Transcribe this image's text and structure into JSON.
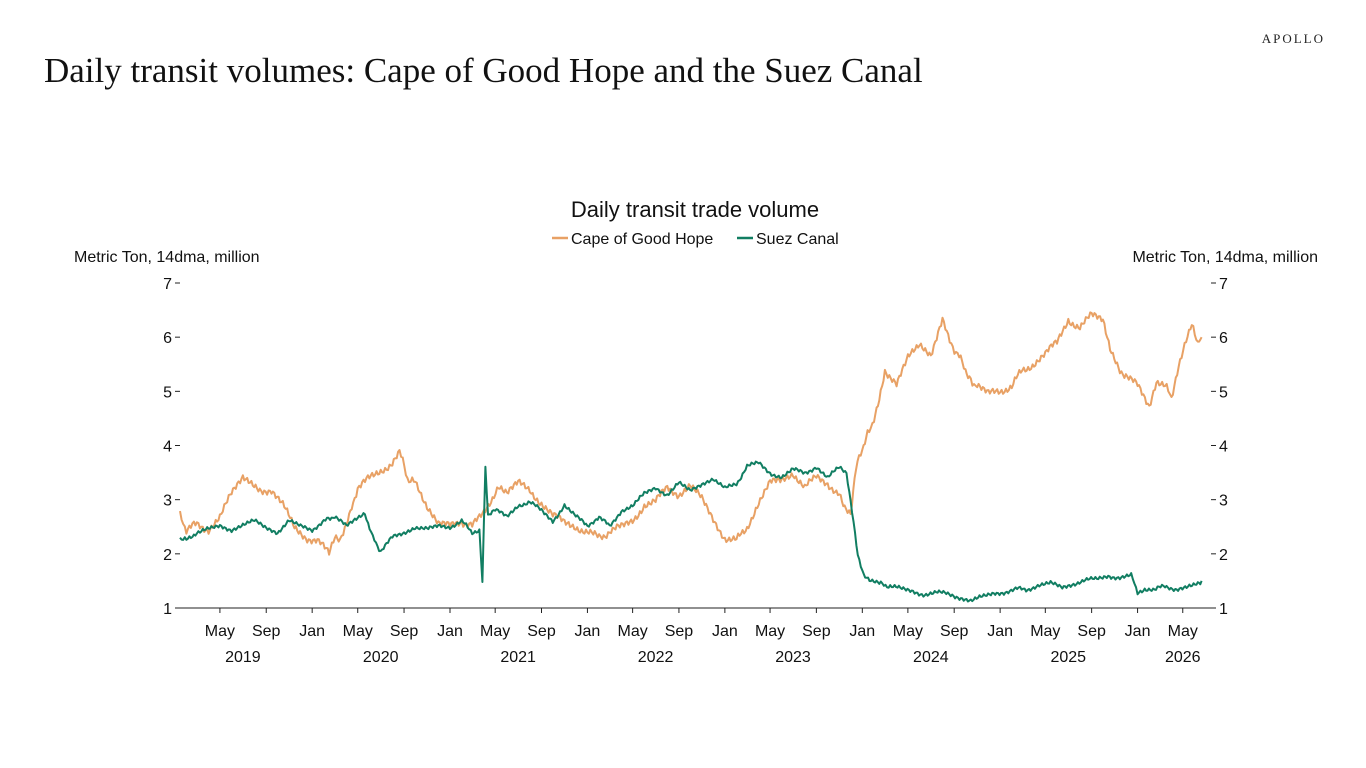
{
  "brand": "APOLLO",
  "page_title": "Daily transit volumes: Cape of Good Hope and the Suez Canal",
  "chart_data": {
    "type": "line",
    "title": "Daily transit trade volume",
    "ylabel_left": "Metric Ton, 14dma, million",
    "ylabel_right": "Metric Ton, 14dma, million",
    "ylim": [
      1,
      7
    ],
    "yticks": [
      1,
      2,
      3,
      4,
      5,
      6,
      7
    ],
    "xlim": [
      "2019-01-15",
      "2026-07-15"
    ],
    "x_tick_labels": [
      {
        "date": "2019-05-01",
        "label": "May"
      },
      {
        "date": "2019-09-01",
        "label": "Sep"
      },
      {
        "date": "2020-01-01",
        "label": "Jan"
      },
      {
        "date": "2020-05-01",
        "label": "May"
      },
      {
        "date": "2020-09-01",
        "label": "Sep"
      },
      {
        "date": "2021-01-01",
        "label": "Jan"
      },
      {
        "date": "2021-05-01",
        "label": "May"
      },
      {
        "date": "2021-09-01",
        "label": "Sep"
      },
      {
        "date": "2022-01-01",
        "label": "Jan"
      },
      {
        "date": "2022-05-01",
        "label": "May"
      },
      {
        "date": "2022-09-01",
        "label": "Sep"
      },
      {
        "date": "2023-01-01",
        "label": "Jan"
      },
      {
        "date": "2023-05-01",
        "label": "May"
      },
      {
        "date": "2023-09-01",
        "label": "Sep"
      },
      {
        "date": "2024-01-01",
        "label": "Jan"
      },
      {
        "date": "2024-05-01",
        "label": "May"
      },
      {
        "date": "2024-09-01",
        "label": "Sep"
      },
      {
        "date": "2025-01-01",
        "label": "Jan"
      },
      {
        "date": "2025-05-01",
        "label": "May"
      },
      {
        "date": "2025-09-01",
        "label": "Sep"
      },
      {
        "date": "2026-01-01",
        "label": "Jan"
      },
      {
        "date": "2026-05-01",
        "label": "May"
      }
    ],
    "year_labels": [
      {
        "date": "2019-07-01",
        "label": "2019"
      },
      {
        "date": "2020-07-01",
        "label": "2020"
      },
      {
        "date": "2021-07-01",
        "label": "2021"
      },
      {
        "date": "2022-07-01",
        "label": "2022"
      },
      {
        "date": "2023-07-01",
        "label": "2023"
      },
      {
        "date": "2024-07-01",
        "label": "2024"
      },
      {
        "date": "2025-07-01",
        "label": "2025"
      },
      {
        "date": "2026-05-01",
        "label": "2026"
      }
    ],
    "legend_position": "top-center",
    "grid": false,
    "series": [
      {
        "name": "Cape of Good Hope",
        "color": "#E8A165",
        "x": [
          "2019-01-15",
          "2019-02-01",
          "2019-03-01",
          "2019-04-01",
          "2019-05-01",
          "2019-06-01",
          "2019-07-01",
          "2019-07-20",
          "2019-08-15",
          "2019-09-15",
          "2019-10-15",
          "2019-11-15",
          "2019-12-15",
          "2020-01-15",
          "2020-02-15",
          "2020-03-01",
          "2020-03-15",
          "2020-04-01",
          "2020-04-15",
          "2020-05-01",
          "2020-06-01",
          "2020-07-01",
          "2020-08-01",
          "2020-08-20",
          "2020-09-10",
          "2020-10-01",
          "2020-11-01",
          "2020-12-01",
          "2021-01-01",
          "2021-02-01",
          "2021-03-01",
          "2021-04-01",
          "2021-04-20",
          "2021-05-10",
          "2021-06-01",
          "2021-07-01",
          "2021-08-01",
          "2021-09-01",
          "2021-10-01",
          "2021-11-01",
          "2021-12-01",
          "2022-01-01",
          "2022-02-01",
          "2022-03-01",
          "2022-04-01",
          "2022-05-01",
          "2022-06-01",
          "2022-07-01",
          "2022-08-01",
          "2022-09-01",
          "2022-10-01",
          "2022-11-01",
          "2022-12-01",
          "2023-01-01",
          "2023-02-01",
          "2023-03-01",
          "2023-04-01",
          "2023-05-01",
          "2023-06-01",
          "2023-07-01",
          "2023-08-01",
          "2023-09-01",
          "2023-10-01",
          "2023-11-01",
          "2023-11-15",
          "2023-12-01",
          "2023-12-15",
          "2024-01-01",
          "2024-01-15",
          "2024-02-01",
          "2024-02-15",
          "2024-03-01",
          "2024-04-01",
          "2024-05-01",
          "2024-06-01",
          "2024-07-01",
          "2024-08-01",
          "2024-08-20",
          "2024-09-10",
          "2024-10-01",
          "2024-10-15",
          "2024-11-01",
          "2024-12-01",
          "2025-01-01",
          "2025-02-01",
          "2025-03-01",
          "2025-04-01",
          "2025-05-01",
          "2025-06-01",
          "2025-07-01",
          "2025-08-01",
          "2025-09-01",
          "2025-10-01",
          "2025-10-20",
          "2025-11-15",
          "2025-12-01",
          "2026-01-01",
          "2026-02-01",
          "2026-02-20",
          "2026-03-15",
          "2026-04-01",
          "2026-04-20",
          "2026-05-10",
          "2026-05-25",
          "2026-06-10",
          "2026-06-20"
        ],
        "y": [
          2.7,
          2.45,
          2.55,
          2.45,
          2.7,
          3.1,
          3.4,
          3.35,
          3.2,
          3.15,
          2.9,
          2.5,
          2.3,
          2.25,
          2.0,
          2.3,
          2.2,
          2.6,
          2.9,
          3.2,
          3.4,
          3.5,
          3.7,
          3.9,
          3.4,
          3.3,
          2.9,
          2.6,
          2.5,
          2.6,
          2.5,
          2.8,
          3.0,
          3.2,
          3.1,
          3.3,
          3.2,
          2.9,
          2.7,
          2.6,
          2.5,
          2.4,
          2.3,
          2.4,
          2.5,
          2.6,
          2.9,
          3.0,
          3.2,
          3.1,
          3.3,
          3.0,
          2.6,
          2.3,
          2.25,
          2.5,
          2.9,
          3.3,
          3.4,
          3.5,
          3.2,
          3.45,
          3.3,
          3.1,
          2.9,
          2.7,
          3.6,
          3.9,
          4.2,
          4.5,
          4.9,
          5.4,
          5.1,
          5.6,
          5.9,
          5.7,
          6.3,
          5.9,
          5.7,
          5.4,
          5.2,
          5.1,
          4.95,
          5.0,
          5.1,
          5.4,
          5.5,
          5.7,
          5.9,
          6.3,
          6.2,
          6.4,
          6.3,
          5.8,
          5.4,
          5.3,
          5.1,
          4.75,
          5.2,
          5.1,
          4.9,
          5.5,
          5.9,
          6.2,
          5.9,
          6.0
        ]
      },
      {
        "name": "Suez Canal",
        "color": "#117E62",
        "x": [
          "2019-01-15",
          "2019-02-01",
          "2019-03-01",
          "2019-04-01",
          "2019-05-01",
          "2019-06-01",
          "2019-07-01",
          "2019-08-01",
          "2019-09-01",
          "2019-10-01",
          "2019-11-01",
          "2019-12-01",
          "2020-01-01",
          "2020-02-01",
          "2020-03-01",
          "2020-04-01",
          "2020-05-01",
          "2020-05-20",
          "2020-06-10",
          "2020-07-01",
          "2020-08-01",
          "2020-09-01",
          "2020-10-01",
          "2020-11-01",
          "2020-12-01",
          "2021-01-01",
          "2021-02-01",
          "2021-03-01",
          "2021-03-20",
          "2021-03-28",
          "2021-04-05",
          "2021-04-12",
          "2021-05-01",
          "2021-06-01",
          "2021-07-01",
          "2021-08-01",
          "2021-09-01",
          "2021-10-01",
          "2021-11-01",
          "2021-12-01",
          "2022-01-01",
          "2022-02-01",
          "2022-03-01",
          "2022-04-01",
          "2022-05-01",
          "2022-06-01",
          "2022-07-01",
          "2022-08-01",
          "2022-09-01",
          "2022-10-01",
          "2022-11-01",
          "2022-12-01",
          "2023-01-01",
          "2023-02-01",
          "2023-03-01",
          "2023-04-01",
          "2023-05-01",
          "2023-06-01",
          "2023-07-01",
          "2023-08-01",
          "2023-09-01",
          "2023-10-01",
          "2023-11-01",
          "2023-11-20",
          "2023-12-05",
          "2023-12-20",
          "2024-01-05",
          "2024-01-20",
          "2024-02-15",
          "2024-03-15",
          "2024-04-15",
          "2024-05-15",
          "2024-06-15",
          "2024-07-15",
          "2024-08-15",
          "2024-09-15",
          "2024-10-15",
          "2024-11-15",
          "2024-12-15",
          "2025-01-15",
          "2025-02-15",
          "2025-03-15",
          "2025-04-15",
          "2025-05-15",
          "2025-06-15",
          "2025-07-15",
          "2025-08-15",
          "2025-09-15",
          "2025-10-15",
          "2025-11-15",
          "2025-12-15",
          "2026-01-01",
          "2026-01-20",
          "2026-02-15",
          "2026-03-15",
          "2026-04-15",
          "2026-05-15",
          "2026-06-10",
          "2026-06-20"
        ],
        "y": [
          2.3,
          2.25,
          2.4,
          2.45,
          2.5,
          2.45,
          2.55,
          2.6,
          2.5,
          2.4,
          2.6,
          2.5,
          2.45,
          2.6,
          2.7,
          2.5,
          2.65,
          2.75,
          2.3,
          2.05,
          2.3,
          2.4,
          2.5,
          2.45,
          2.5,
          2.5,
          2.6,
          2.4,
          2.45,
          1.5,
          3.6,
          2.7,
          2.8,
          2.7,
          2.9,
          2.95,
          2.8,
          2.6,
          2.9,
          2.7,
          2.5,
          2.7,
          2.5,
          2.8,
          2.9,
          3.1,
          3.2,
          3.1,
          3.3,
          3.15,
          3.3,
          3.4,
          3.2,
          3.3,
          3.6,
          3.7,
          3.5,
          3.4,
          3.55,
          3.5,
          3.6,
          3.4,
          3.6,
          3.5,
          2.8,
          2.0,
          1.6,
          1.5,
          1.45,
          1.4,
          1.35,
          1.3,
          1.25,
          1.3,
          1.25,
          1.2,
          1.15,
          1.2,
          1.25,
          1.3,
          1.35,
          1.35,
          1.4,
          1.45,
          1.4,
          1.45,
          1.5,
          1.55,
          1.6,
          1.55,
          1.6,
          1.3,
          1.35,
          1.35,
          1.4,
          1.35,
          1.4,
          1.45,
          1.5
        ]
      }
    ]
  }
}
